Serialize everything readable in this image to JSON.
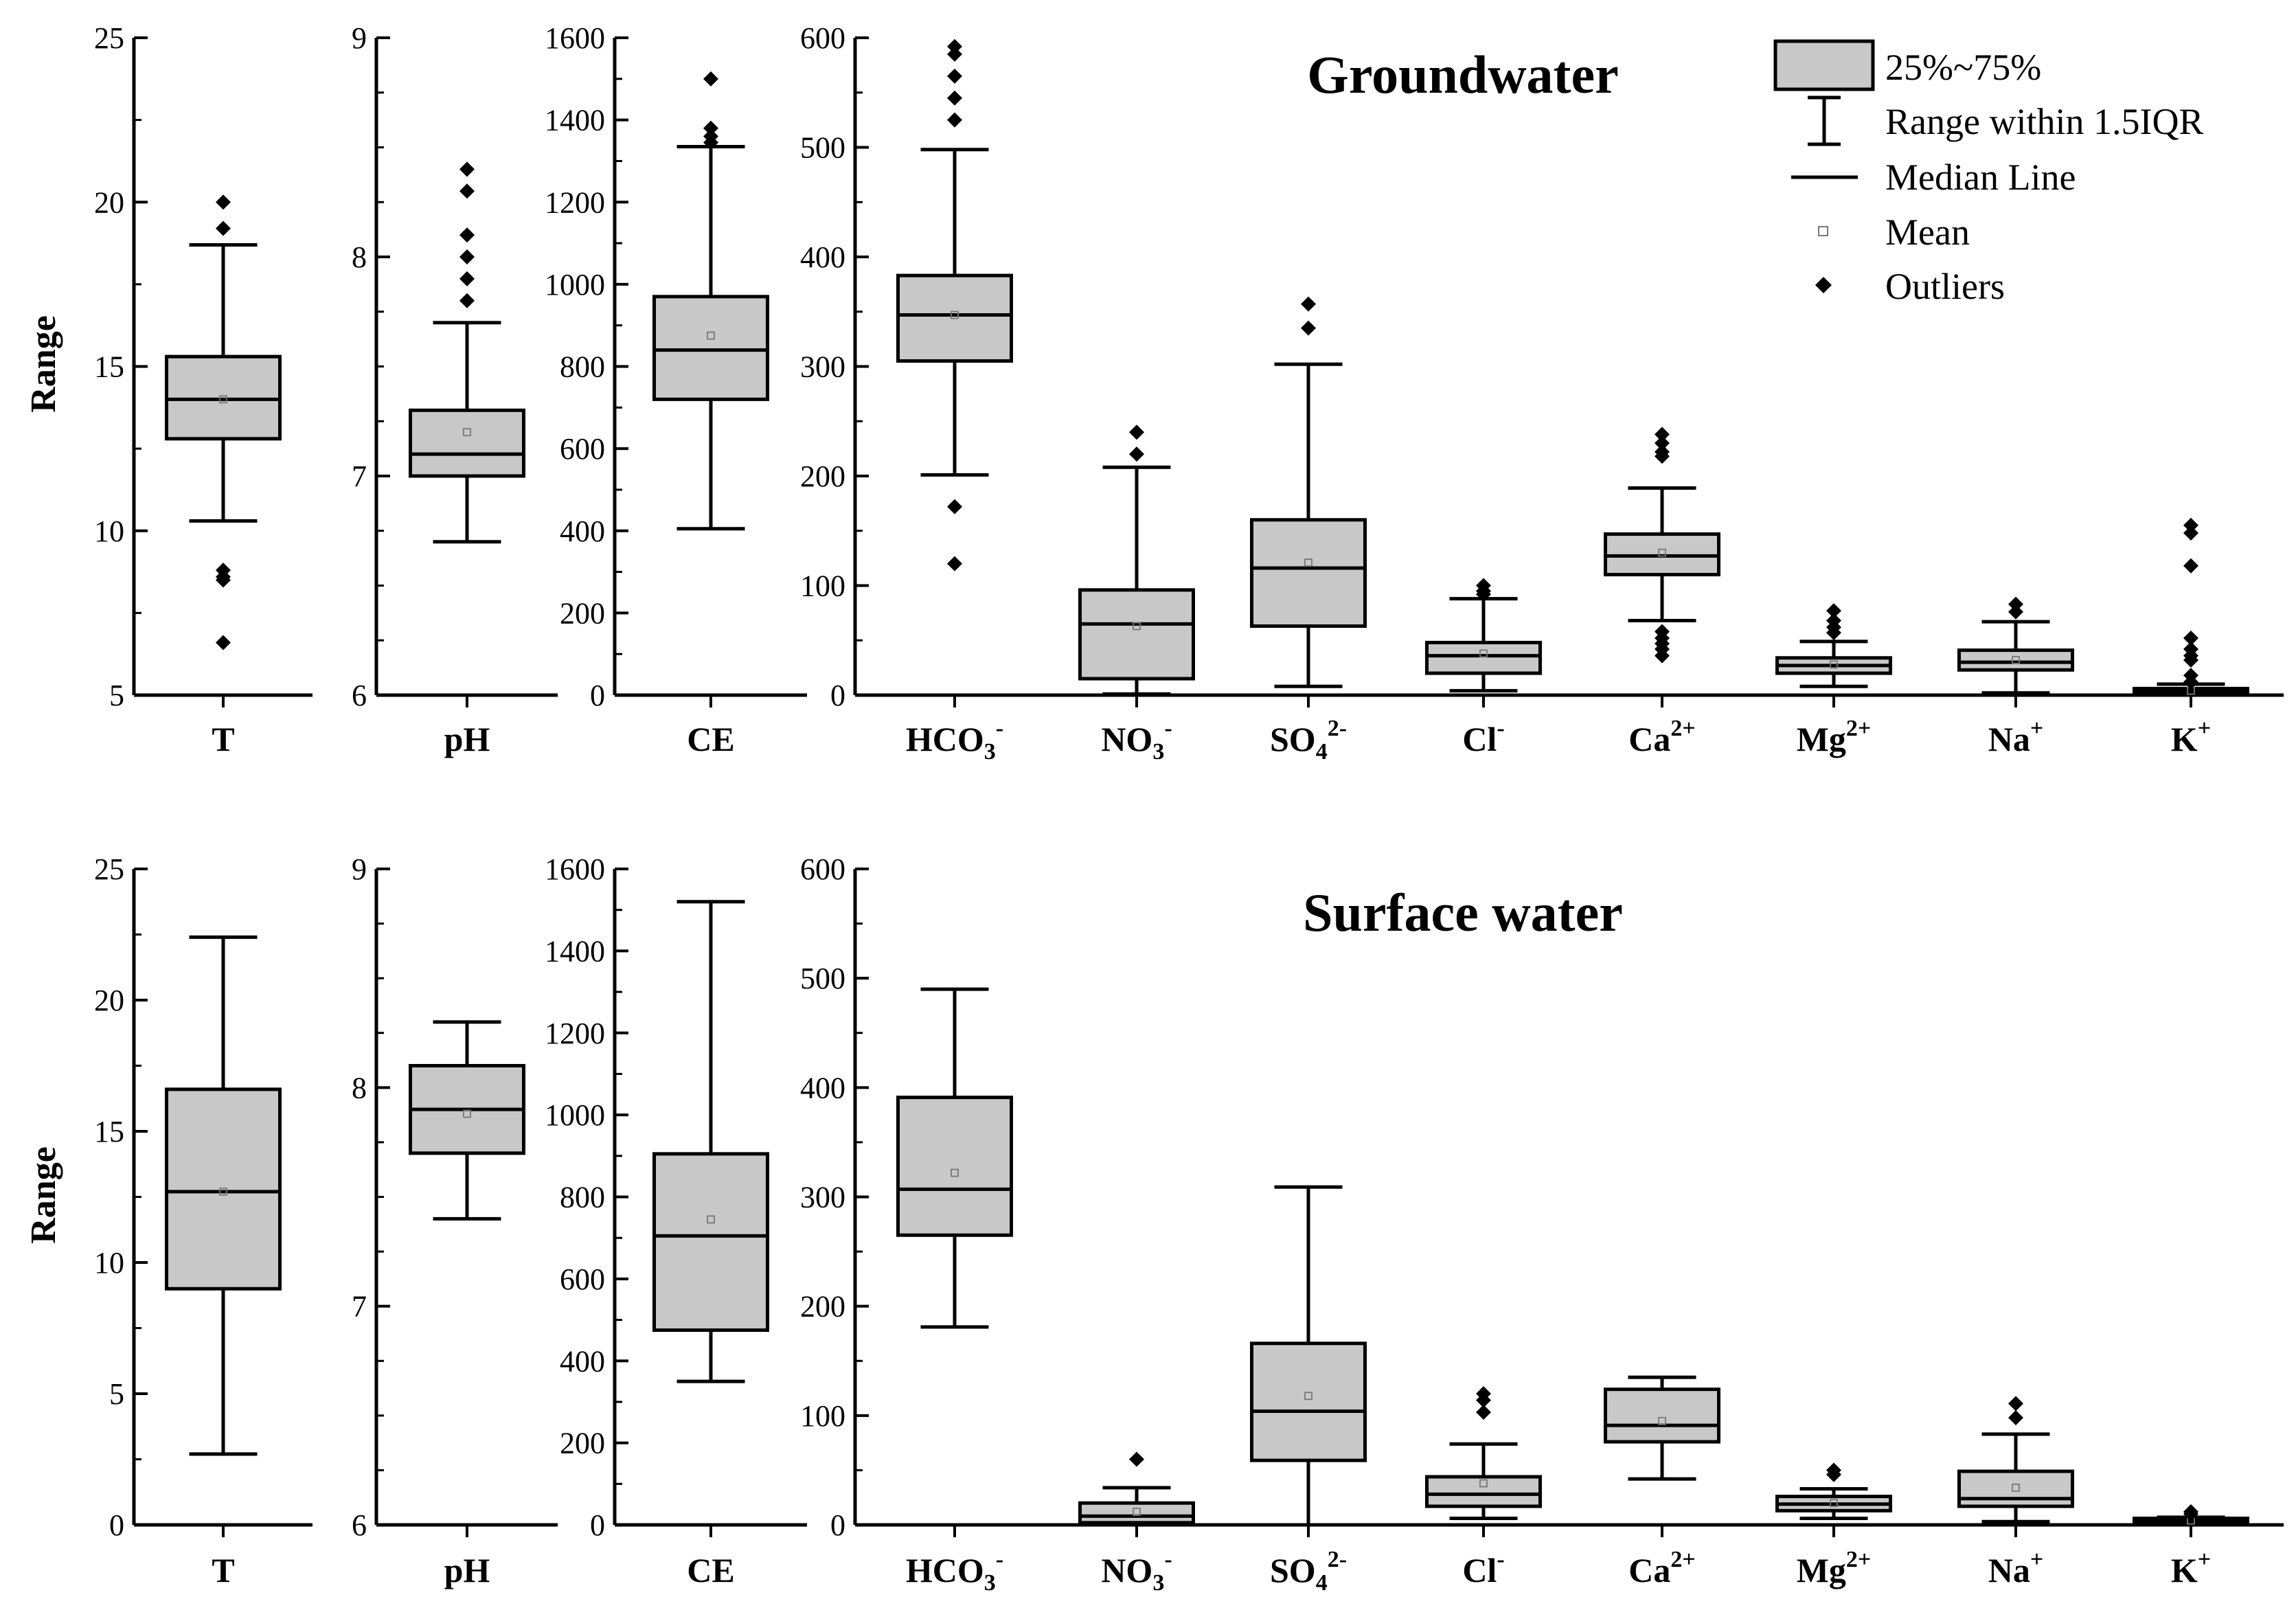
{
  "chart_data": {
    "type": "box",
    "ylabel": "Range",
    "legend": {
      "position": "top-right",
      "entries": [
        "25%~75%",
        "Range within 1.5IQR",
        "Median Line",
        "Mean",
        "Outliers"
      ]
    },
    "panels": [
      {
        "title": "Groundwater",
        "subplots": [
          {
            "category": "T",
            "ylim": [
              5,
              25
            ],
            "ticks": [
              5,
              10,
              15,
              20,
              25
            ],
            "box": {
              "q1": 12.8,
              "median": 14.0,
              "q3": 15.3,
              "mean": 14.0,
              "whisker_low": 10.3,
              "whisker_high": 18.7,
              "outliers": [
                20.0,
                19.2,
                8.8,
                8.6,
                8.5,
                6.6
              ]
            }
          },
          {
            "category": "pH",
            "ylim": [
              6,
              9
            ],
            "ticks": [
              6,
              7,
              8,
              9
            ],
            "box": {
              "q1": 7.0,
              "median": 7.1,
              "q3": 7.3,
              "mean": 7.2,
              "whisker_low": 6.7,
              "whisker_high": 7.7,
              "outliers": [
                8.4,
                8.3,
                8.1,
                8.0,
                7.9,
                7.8
              ]
            }
          },
          {
            "category": "CE",
            "ylim": [
              0,
              1600
            ],
            "ticks": [
              0,
              200,
              400,
              600,
              800,
              1000,
              1200,
              1400,
              1600
            ],
            "box": {
              "q1": 720,
              "median": 840,
              "q3": 970,
              "mean": 875,
              "whisker_low": 405,
              "whisker_high": 1335,
              "outliers": [
                1500,
                1380,
                1360,
                1345
              ]
            }
          },
          {
            "ylim": [
              0,
              600
            ],
            "ticks": [
              0,
              100,
              200,
              300,
              400,
              500,
              600
            ],
            "groups": [
              {
                "category": "HCO3",
                "charge": "-",
                "box": {
                  "q1": 305,
                  "median": 347,
                  "q3": 383,
                  "mean": 347,
                  "whisker_low": 201,
                  "whisker_high": 498,
                  "outliers": [
                    592,
                    585,
                    565,
                    545,
                    525,
                    172,
                    120
                  ]
                }
              },
              {
                "category": "NO3",
                "charge": "-",
                "box": {
                  "q1": 15,
                  "median": 65,
                  "q3": 96,
                  "mean": 63,
                  "whisker_low": 1,
                  "whisker_high": 208,
                  "outliers": [
                    240,
                    220
                  ]
                }
              },
              {
                "category": "SO4",
                "charge": "2-",
                "box": {
                  "q1": 63,
                  "median": 116,
                  "q3": 160,
                  "mean": 121,
                  "whisker_low": 8,
                  "whisker_high": 302,
                  "outliers": [
                    357,
                    335
                  ]
                }
              },
              {
                "category": "Cl",
                "charge": "-",
                "box": {
                  "q1": 20,
                  "median": 36,
                  "q3": 48,
                  "mean": 38,
                  "whisker_low": 4,
                  "whisker_high": 88,
                  "outliers": [
                    100,
                    95,
                    92
                  ]
                }
              },
              {
                "category": "Ca",
                "charge": "2+",
                "box": {
                  "q1": 110,
                  "median": 127,
                  "q3": 147,
                  "mean": 130,
                  "whisker_low": 68,
                  "whisker_high": 189,
                  "outliers": [
                    238,
                    230,
                    222,
                    218,
                    58,
                    52,
                    47,
                    42,
                    36
                  ]
                }
              },
              {
                "category": "Mg",
                "charge": "2+",
                "box": {
                  "q1": 20,
                  "median": 27,
                  "q3": 34,
                  "mean": 28,
                  "whisker_low": 8,
                  "whisker_high": 49,
                  "outliers": [
                    77,
                    68,
                    62,
                    57
                  ]
                }
              },
              {
                "category": "Na",
                "charge": "+",
                "box": {
                  "q1": 23,
                  "median": 30,
                  "q3": 41,
                  "mean": 32,
                  "whisker_low": 2,
                  "whisker_high": 67,
                  "outliers": [
                    83,
                    76
                  ]
                }
              },
              {
                "category": "K",
                "charge": "+",
                "box": {
                  "q1": 2,
                  "median": 4,
                  "q3": 6,
                  "mean": 4,
                  "whisker_low": 0,
                  "whisker_high": 10,
                  "outliers": [
                    155,
                    148,
                    118,
                    52,
                    42,
                    36,
                    32,
                    18,
                    12
                  ]
                }
              }
            ]
          }
        ]
      },
      {
        "title": "Surface water",
        "subplots": [
          {
            "category": "T",
            "ylim": [
              0,
              25
            ],
            "ticks": [
              0,
              5,
              10,
              15,
              20,
              25
            ],
            "box": {
              "q1": 9.0,
              "median": 12.7,
              "q3": 16.6,
              "mean": 12.7,
              "whisker_low": 2.7,
              "whisker_high": 22.4,
              "outliers": []
            }
          },
          {
            "category": "pH",
            "ylim": [
              6,
              9
            ],
            "ticks": [
              6,
              7,
              8,
              9
            ],
            "box": {
              "q1": 7.7,
              "median": 7.9,
              "q3": 8.1,
              "mean": 7.88,
              "whisker_low": 7.4,
              "whisker_high": 8.3,
              "outliers": []
            }
          },
          {
            "category": "CE",
            "ylim": [
              0,
              1600
            ],
            "ticks": [
              0,
              200,
              400,
              600,
              800,
              1000,
              1200,
              1400,
              1600
            ],
            "box": {
              "q1": 475,
              "median": 705,
              "q3": 905,
              "mean": 745,
              "whisker_low": 350,
              "whisker_high": 1520,
              "outliers": []
            }
          },
          {
            "ylim": [
              0,
              600
            ],
            "ticks": [
              0,
              100,
              200,
              300,
              400,
              500,
              600
            ],
            "groups": [
              {
                "category": "HCO3",
                "charge": "-",
                "box": {
                  "q1": 265,
                  "median": 307,
                  "q3": 391,
                  "mean": 322,
                  "whisker_low": 181,
                  "whisker_high": 490,
                  "outliers": []
                }
              },
              {
                "category": "NO3",
                "charge": "-",
                "box": {
                  "q1": 2,
                  "median": 8,
                  "q3": 20,
                  "mean": 12,
                  "whisker_low": 0,
                  "whisker_high": 34,
                  "outliers": [
                    60
                  ]
                }
              },
              {
                "category": "SO4",
                "charge": "2-",
                "box": {
                  "q1": 59,
                  "median": 104,
                  "q3": 166,
                  "mean": 118,
                  "whisker_low": 0,
                  "whisker_high": 309,
                  "outliers": []
                }
              },
              {
                "category": "Cl",
                "charge": "-",
                "box": {
                  "q1": 17,
                  "median": 28,
                  "q3": 44,
                  "mean": 38,
                  "whisker_low": 6,
                  "whisker_high": 74,
                  "outliers": [
                    120,
                    114,
                    103
                  ]
                }
              },
              {
                "category": "Ca",
                "charge": "2+",
                "box": {
                  "q1": 76,
                  "median": 91,
                  "q3": 124,
                  "mean": 95,
                  "whisker_low": 42,
                  "whisker_high": 135,
                  "outliers": []
                }
              },
              {
                "category": "Mg",
                "charge": "2+",
                "box": {
                  "q1": 13,
                  "median": 19,
                  "q3": 26,
                  "mean": 20,
                  "whisker_low": 6,
                  "whisker_high": 33,
                  "outliers": [
                    50,
                    46
                  ]
                }
              },
              {
                "category": "Na",
                "charge": "+",
                "box": {
                  "q1": 17,
                  "median": 24,
                  "q3": 49,
                  "mean": 34,
                  "whisker_low": 3,
                  "whisker_high": 83,
                  "outliers": [
                    111,
                    98
                  ]
                }
              },
              {
                "category": "K",
                "charge": "+",
                "box": {
                  "q1": 3,
                  "median": 4,
                  "q3": 6,
                  "mean": 4,
                  "whisker_low": 1,
                  "whisker_high": 7,
                  "outliers": [
                    12,
                    10
                  ]
                }
              }
            ]
          }
        ]
      }
    ]
  }
}
